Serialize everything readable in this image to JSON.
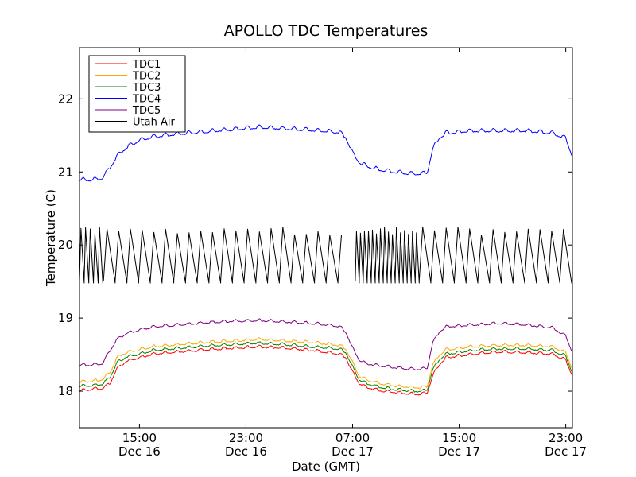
{
  "chart_data": {
    "type": "line",
    "title": "APOLLO TDC Temperatures",
    "xlabel": "Date (GMT)",
    "ylabel": "Temperature (C)",
    "xlim_hours": [
      10.5,
      47.5
    ],
    "ylim": [
      17.5,
      22.7
    ],
    "yticks": [
      18,
      19,
      20,
      21,
      22
    ],
    "xticks": [
      {
        "hours": 15,
        "time": "15:00",
        "date": "Dec 16"
      },
      {
        "hours": 23,
        "time": "23:00",
        "date": "Dec 16"
      },
      {
        "hours": 31,
        "time": "07:00",
        "date": "Dec 17"
      },
      {
        "hours": 39,
        "time": "15:00",
        "date": "Dec 17"
      },
      {
        "hours": 47,
        "time": "23:00",
        "date": "Dec 17"
      }
    ],
    "legend_position": "top-left",
    "series": [
      {
        "name": "TDC1",
        "color": "#ff0000",
        "x": [
          10.5,
          11.5,
          12.2,
          12.8,
          13.3,
          14,
          15,
          16,
          18,
          20,
          22,
          24,
          26,
          28,
          30,
          30.5,
          31,
          31.5,
          32,
          33,
          34,
          35,
          36,
          36.6,
          37,
          37.5,
          38,
          40,
          42,
          44,
          46,
          47,
          47.5
        ],
        "y": [
          18.0,
          18.02,
          18.03,
          18.1,
          18.3,
          18.4,
          18.45,
          18.5,
          18.53,
          18.56,
          18.58,
          18.6,
          18.58,
          18.55,
          18.5,
          18.45,
          18.25,
          18.1,
          18.05,
          18.0,
          17.98,
          17.96,
          17.95,
          17.97,
          18.2,
          18.35,
          18.45,
          18.5,
          18.53,
          18.52,
          18.5,
          18.42,
          18.2
        ]
      },
      {
        "name": "TDC2",
        "color": "#ffa500",
        "x": [
          10.5,
          11.5,
          12.2,
          12.8,
          13.3,
          14,
          15,
          16,
          18,
          20,
          22,
          24,
          26,
          28,
          30,
          30.5,
          31,
          31.5,
          32,
          33,
          34,
          35,
          36,
          36.6,
          37,
          37.5,
          38,
          40,
          42,
          44,
          46,
          47,
          47.5
        ],
        "y": [
          18.12,
          18.13,
          18.15,
          18.25,
          18.45,
          18.52,
          18.56,
          18.6,
          18.63,
          18.66,
          18.68,
          18.7,
          18.68,
          18.66,
          18.62,
          18.57,
          18.38,
          18.2,
          18.15,
          18.1,
          18.07,
          18.05,
          18.04,
          18.06,
          18.35,
          18.48,
          18.56,
          18.6,
          18.62,
          18.62,
          18.6,
          18.52,
          18.3
        ]
      },
      {
        "name": "TDC3",
        "color": "#008000",
        "x": [
          10.5,
          11.5,
          12.2,
          12.8,
          13.3,
          14,
          15,
          16,
          18,
          20,
          22,
          24,
          26,
          28,
          30,
          30.5,
          31,
          31.5,
          32,
          33,
          34,
          35,
          36,
          36.6,
          37,
          37.5,
          38,
          40,
          42,
          44,
          46,
          47,
          47.5
        ],
        "y": [
          18.06,
          18.07,
          18.09,
          18.18,
          18.38,
          18.46,
          18.5,
          18.55,
          18.58,
          18.61,
          18.63,
          18.65,
          18.63,
          18.6,
          18.57,
          18.52,
          18.32,
          18.15,
          18.1,
          18.05,
          18.02,
          18.0,
          17.99,
          18.01,
          18.28,
          18.42,
          18.5,
          18.55,
          18.57,
          18.57,
          18.55,
          18.47,
          18.25
        ]
      },
      {
        "name": "TDC4",
        "color": "#0000ff",
        "x": [
          10.5,
          11.5,
          12.2,
          12.8,
          13.3,
          14,
          15,
          16,
          18,
          20,
          22,
          24,
          26,
          28,
          30,
          30.5,
          31,
          31.5,
          32,
          33,
          34,
          35,
          36,
          36.6,
          37,
          37.5,
          38,
          40,
          42,
          44,
          46,
          47,
          47.5
        ],
        "y": [
          20.88,
          20.88,
          20.9,
          21.05,
          21.2,
          21.32,
          21.42,
          21.47,
          21.51,
          21.54,
          21.57,
          21.6,
          21.58,
          21.56,
          21.53,
          21.46,
          21.25,
          21.12,
          21.07,
          21.02,
          20.99,
          20.97,
          20.96,
          20.98,
          21.3,
          21.45,
          21.52,
          21.55,
          21.55,
          21.55,
          21.52,
          21.45,
          21.2
        ]
      },
      {
        "name": "TDC5",
        "color": "#800080",
        "x": [
          10.5,
          11.5,
          12.2,
          12.8,
          13.3,
          14,
          15,
          16,
          18,
          20,
          22,
          24,
          26,
          28,
          30,
          30.5,
          31,
          31.5,
          32,
          33,
          34,
          35,
          36,
          36.6,
          37,
          37.5,
          38,
          40,
          42,
          44,
          46,
          47,
          47.5
        ],
        "y": [
          18.35,
          18.35,
          18.37,
          18.55,
          18.7,
          18.78,
          18.83,
          18.87,
          18.9,
          18.93,
          18.95,
          18.96,
          18.94,
          18.92,
          18.88,
          18.8,
          18.58,
          18.42,
          18.37,
          18.34,
          18.32,
          18.3,
          18.29,
          18.31,
          18.65,
          18.8,
          18.87,
          18.9,
          18.92,
          18.9,
          18.86,
          18.75,
          18.52
        ]
      },
      {
        "name": "Utah Air",
        "color": "#000000",
        "y_min": 19.48,
        "y_max": 20.25,
        "segments": [
          {
            "start": 10.5,
            "end": 12.3,
            "period": 0.35
          },
          {
            "start": 12.3,
            "end": 30.3,
            "period": 0.88
          },
          {
            "start": 31.2,
            "end": 36.0,
            "period": 0.3
          },
          {
            "start": 36.0,
            "end": 47.5,
            "period": 0.88
          }
        ]
      }
    ]
  }
}
